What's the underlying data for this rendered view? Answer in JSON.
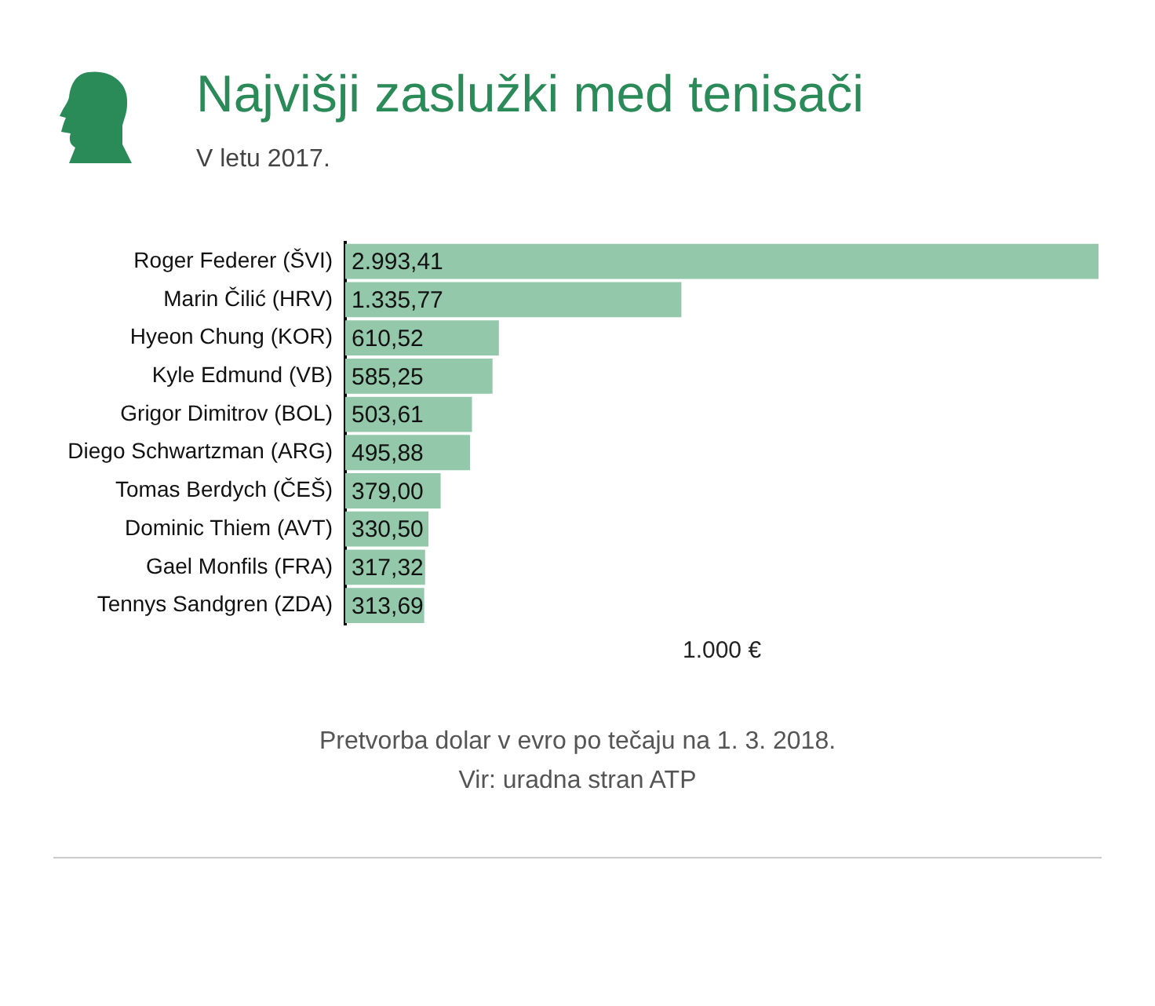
{
  "chart_data": {
    "type": "bar",
    "orientation": "horizontal",
    "title": "Najvišji zaslužki med tenisači",
    "subtitle": "V letu 2017.",
    "xlabel": "1.000 €",
    "categories": [
      "Roger Federer (ŠVI)",
      "Marin Čilić (HRV)",
      "Hyeon Chung (KOR)",
      "Kyle Edmund (VB)",
      "Grigor Dimitrov (BOL)",
      "Diego Schwartzman (ARG)",
      "Tomas Berdych (ČEŠ)",
      "Dominic Thiem (AVT)",
      "Gael Monfils (FRA)",
      "Tennys Sandgren (ZDA)"
    ],
    "values": [
      2993.41,
      1335.77,
      610.52,
      585.25,
      503.61,
      495.88,
      379.0,
      330.5,
      317.32,
      313.69
    ],
    "value_labels": [
      "2.993,41",
      "1.335,77",
      "610,52",
      "585,25",
      "503,61",
      "495,88",
      "379,00",
      "330,50",
      "317,32",
      "313,69"
    ],
    "color": "#93c8aa",
    "xlim": [
      0,
      2993.41
    ],
    "tick_labels": "y",
    "legend": false,
    "annotations": [
      "Pretvorba dolar v evro po tečaju na 1. 3. 2018.",
      "Vir: uradna stran ATP"
    ]
  }
}
